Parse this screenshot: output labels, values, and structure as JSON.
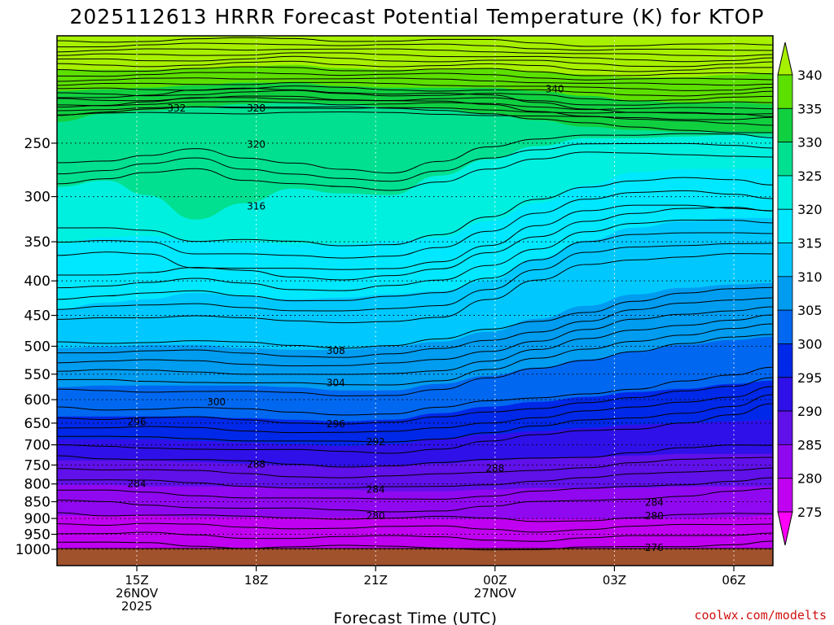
{
  "chart_data": {
    "type": "contour",
    "title": "2025112613 HRRR Forecast Potential Temperature (K) for KTOP",
    "xlabel": "Forecast Time (UTC)",
    "credit": "coolwx.com/modelts",
    "x_ticks": [
      {
        "hour": 15,
        "lines": [
          "15Z",
          "26NOV",
          "2025"
        ]
      },
      {
        "hour": 18,
        "lines": [
          "18Z"
        ]
      },
      {
        "hour": 21,
        "lines": [
          "21Z"
        ]
      },
      {
        "hour": 24,
        "lines": [
          "00Z",
          "27NOV"
        ]
      },
      {
        "hour": 27,
        "lines": [
          "03Z"
        ]
      },
      {
        "hour": 30,
        "lines": [
          "06Z"
        ]
      }
    ],
    "x_range_hours": [
      13,
      31
    ],
    "y_axis": "pressure (hPa), reversed, log-like",
    "y_ticks": [
      250,
      300,
      350,
      400,
      450,
      500,
      550,
      600,
      650,
      700,
      750,
      800,
      850,
      900,
      950,
      1000
    ],
    "colorbar": {
      "ticks": [
        340,
        335,
        330,
        325,
        320,
        315,
        310,
        305,
        300,
        295,
        290,
        285,
        280,
        275
      ],
      "bands": [
        {
          "from": 340,
          "to": 345,
          "color": "#a6f000"
        },
        {
          "from": 335,
          "to": 340,
          "color": "#5ce000"
        },
        {
          "from": 330,
          "to": 335,
          "color": "#10d040"
        },
        {
          "from": 325,
          "to": 330,
          "color": "#00e090"
        },
        {
          "from": 320,
          "to": 325,
          "color": "#00f0e0"
        },
        {
          "from": 315,
          "to": 320,
          "color": "#00e8ff"
        },
        {
          "from": 310,
          "to": 315,
          "color": "#00c8ff"
        },
        {
          "from": 305,
          "to": 310,
          "color": "#009cf0"
        },
        {
          "from": 300,
          "to": 305,
          "color": "#0068f0"
        },
        {
          "from": 295,
          "to": 300,
          "color": "#0028e8"
        },
        {
          "from": 290,
          "to": 295,
          "color": "#3010e8"
        },
        {
          "from": 285,
          "to": 290,
          "color": "#6010e8"
        },
        {
          "from": 280,
          "to": 285,
          "color": "#9008f0"
        },
        {
          "from": 275,
          "to": 280,
          "color": "#c000f0"
        },
        {
          "from": 270,
          "to": 275,
          "color": "#ff00f8"
        }
      ]
    },
    "contour_labels": [
      {
        "value": "340",
        "hour": 25.5,
        "pressure": 208
      },
      {
        "value": "332",
        "hour": 16.0,
        "pressure": 222
      },
      {
        "value": "328",
        "hour": 18.0,
        "pressure": 222
      },
      {
        "value": "320",
        "hour": 18.0,
        "pressure": 251
      },
      {
        "value": "316",
        "hour": 18.0,
        "pressure": 310
      },
      {
        "value": "308",
        "hour": 20.0,
        "pressure": 508
      },
      {
        "value": "304",
        "hour": 20.0,
        "pressure": 567
      },
      {
        "value": "300",
        "hour": 17.0,
        "pressure": 605
      },
      {
        "value": "296",
        "hour": 15.0,
        "pressure": 647
      },
      {
        "value": "296",
        "hour": 20.0,
        "pressure": 652
      },
      {
        "value": "292",
        "hour": 21.0,
        "pressure": 693
      },
      {
        "value": "288",
        "hour": 18.0,
        "pressure": 748
      },
      {
        "value": "288",
        "hour": 24.0,
        "pressure": 758
      },
      {
        "value": "284",
        "hour": 15.0,
        "pressure": 800
      },
      {
        "value": "284",
        "hour": 21.0,
        "pressure": 815
      },
      {
        "value": "284",
        "hour": 28.0,
        "pressure": 852
      },
      {
        "value": "280",
        "hour": 21.0,
        "pressure": 892
      },
      {
        "value": "280",
        "hour": 28.0,
        "pressure": 892
      },
      {
        "value": "276",
        "hour": 28.0,
        "pressure": 995
      }
    ]
  }
}
